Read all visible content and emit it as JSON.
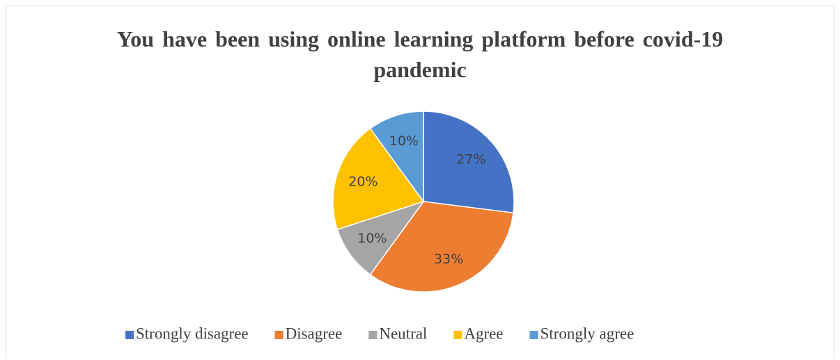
{
  "chart_data": {
    "type": "pie",
    "title": "You have been using online learning platform before covid-19 pandemic",
    "categories": [
      "Strongly disagree",
      "Disagree",
      "Neutral",
      "Agree",
      "Strongly agree"
    ],
    "values": [
      27,
      33,
      10,
      20,
      10
    ],
    "value_labels": [
      "27%",
      "33%",
      "10%",
      "20%",
      "10%"
    ],
    "colors": [
      "#4472c4",
      "#ed7d31",
      "#a5a5a5",
      "#ffc000",
      "#5b9bd5"
    ],
    "legend": "bottom"
  }
}
